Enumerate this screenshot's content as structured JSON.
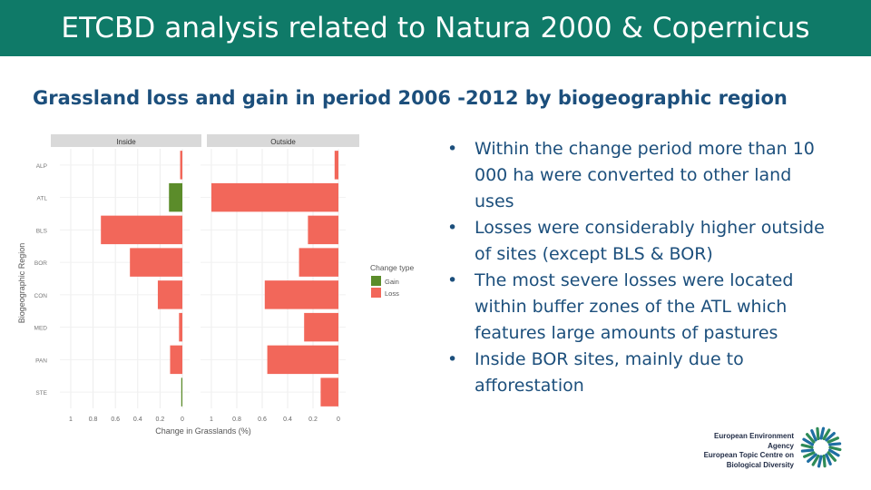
{
  "header": {
    "title": "ETCBD analysis related to Natura 2000 & Copernicus"
  },
  "subtitle": "Grassland loss and gain in period 2006 -2012 by biogeographic region",
  "bullets": [
    "Within the change period more than 10 000 ha were converted to other land uses",
    "Losses were considerably higher outside of sites (except BLS & BOR)",
    "The most severe losses were located within buffer zones of the ATL which features large amounts of pastures",
    "Inside BOR sites, mainly due to afforestation"
  ],
  "colors": {
    "header": "#0f7a68",
    "gain": "#5b8c2a",
    "loss": "#f2675a",
    "text": "#1c4f7c"
  },
  "logo": {
    "lines": [
      "European Environment Agency",
      "European Topic Centre on",
      "Biological Diversity"
    ],
    "icon": "sunburst-logo-icon"
  },
  "chart_data": {
    "type": "bar",
    "orientation": "horizontal",
    "panels": [
      "Inside",
      "Outside"
    ],
    "categories": [
      "ALP",
      "ATL",
      "BLS",
      "BOR",
      "CON",
      "MED",
      "PAN",
      "STE"
    ],
    "ylabel": "Biogeographic Region",
    "xlabel": "Change in Grasslands (%)",
    "xticks": [
      "1",
      "0.8",
      "0.6",
      "0.4",
      "0.2",
      "0"
    ],
    "xlim": [
      0,
      1
    ],
    "legend": {
      "title": "Change type",
      "entries": [
        "Gain",
        "Loss"
      ],
      "position": "right"
    },
    "series": [
      {
        "name": "Loss",
        "panel": "Inside",
        "values": {
          "ALP": 0.02,
          "ATL": 0,
          "BLS": 0.73,
          "BOR": 0.47,
          "CON": 0.22,
          "MED": 0.03,
          "PAN": 0.11,
          "STE": 0
        }
      },
      {
        "name": "Gain",
        "panel": "Inside",
        "values": {
          "ALP": 0,
          "ATL": 0.12,
          "BLS": 0,
          "BOR": 0,
          "CON": 0,
          "MED": 0,
          "PAN": 0,
          "STE": 0.01
        }
      },
      {
        "name": "Loss",
        "panel": "Outside",
        "values": {
          "ALP": 0.03,
          "ATL": 1.0,
          "BLS": 0.24,
          "BOR": 0.31,
          "CON": 0.58,
          "MED": 0.27,
          "PAN": 0.56,
          "STE": 0.14
        }
      }
    ]
  }
}
